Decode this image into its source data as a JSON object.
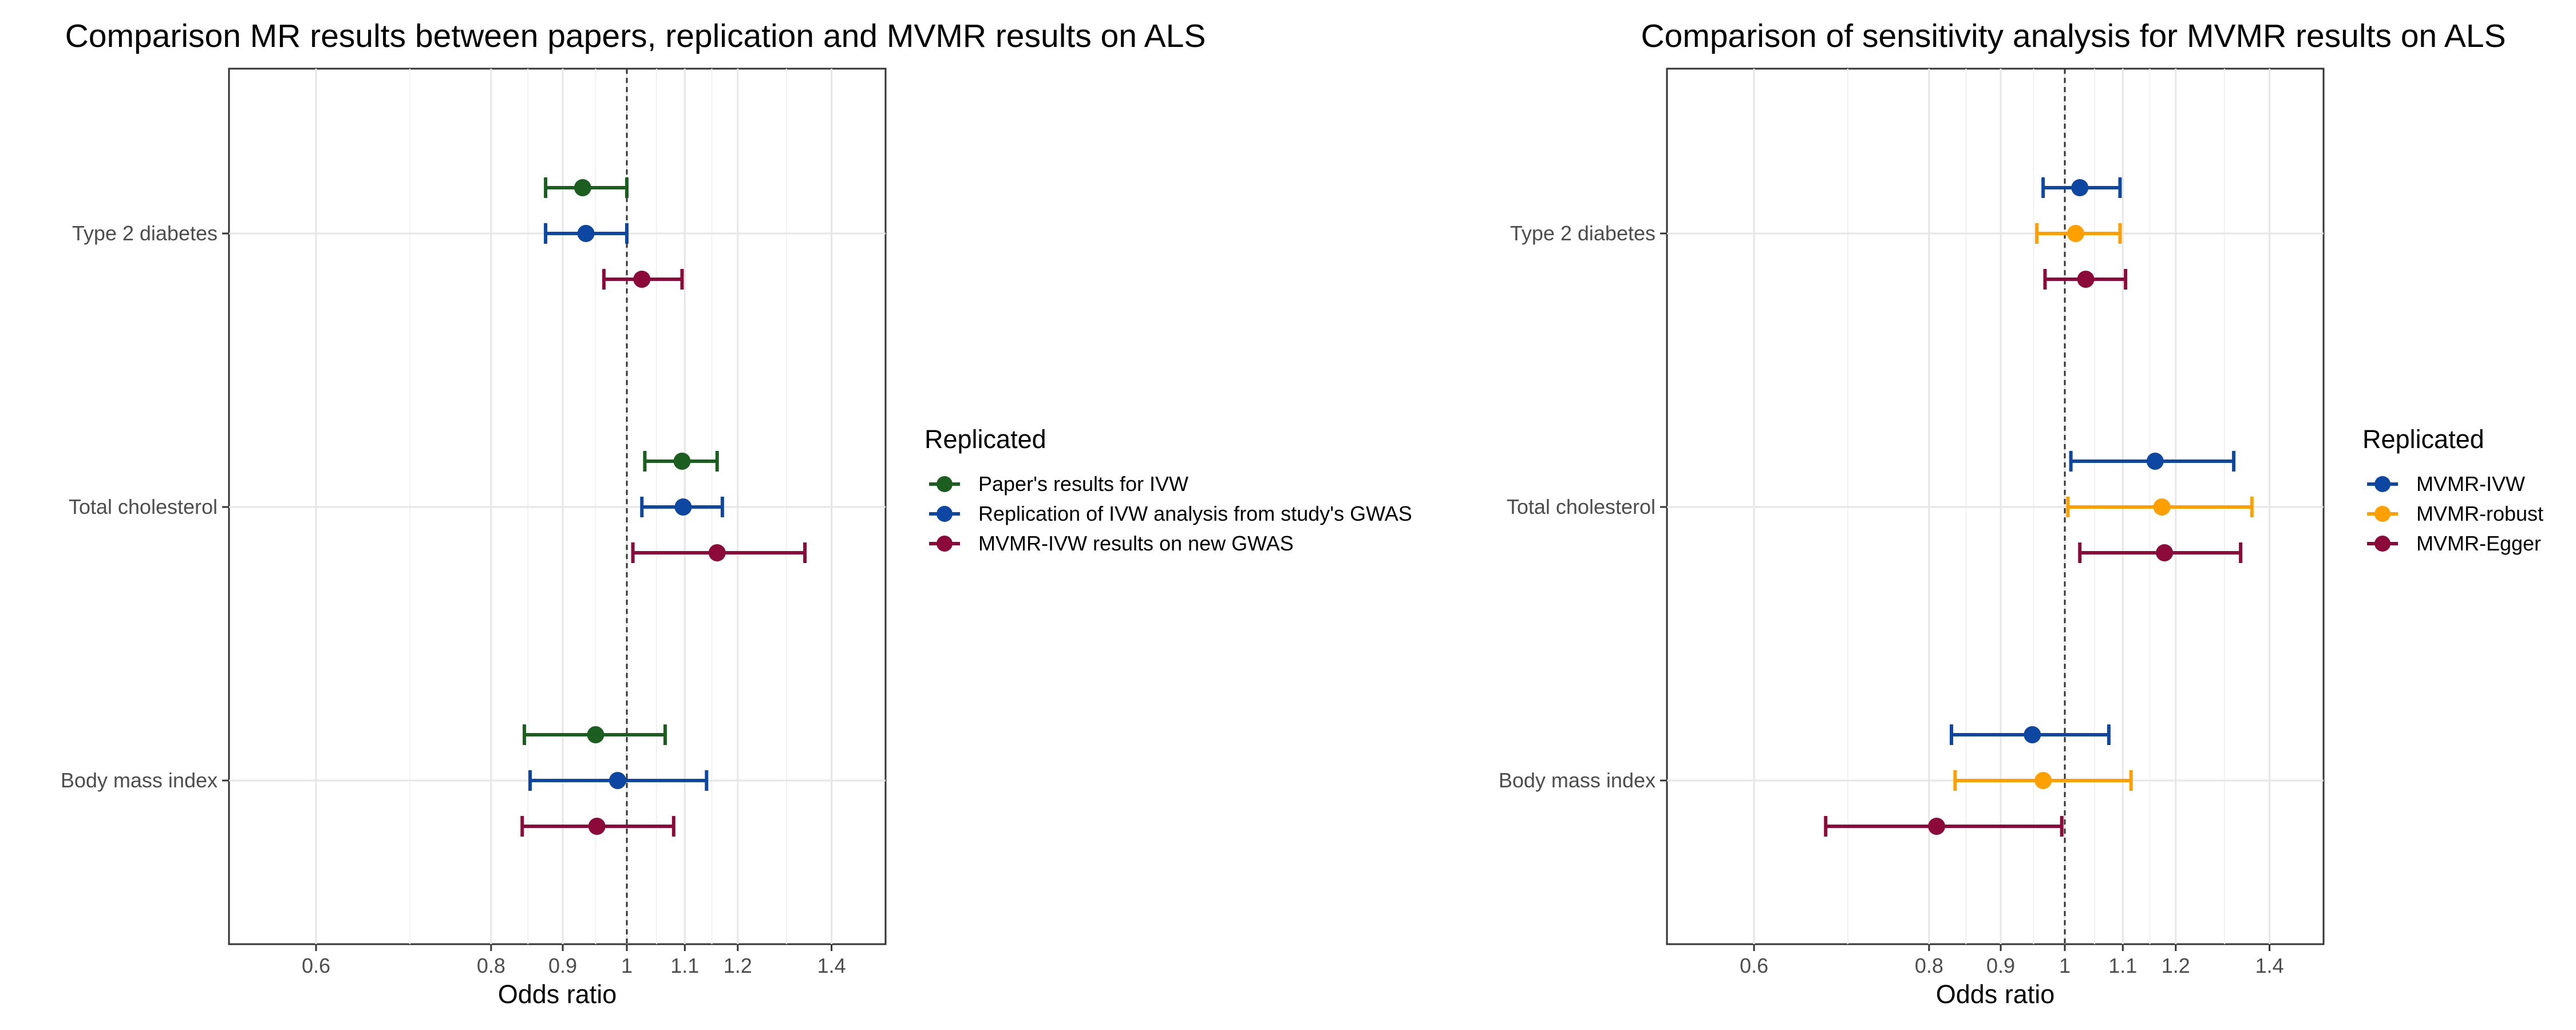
{
  "chart_data": [
    {
      "type": "scatter",
      "subtype": "forest-plot",
      "title": "Comparison MR results between papers, replication and MVMR results on ALS",
      "xlabel": "Odds ratio",
      "ylabel": "",
      "x_scale": "log",
      "xlim": [
        0.52,
        1.53
      ],
      "xticks": [
        0.6,
        0.8,
        0.9,
        1,
        1.1,
        1.2,
        1.4
      ],
      "xtick_labels": [
        "0.6",
        "0.8",
        "0.9",
        "1",
        "1.1",
        "1.2",
        "1.4"
      ],
      "reference_line": 1,
      "grid": true,
      "categories": [
        "Type 2 diabetes",
        "Total cholesterol",
        "Body mass index"
      ],
      "legend": {
        "title": "Replicated",
        "position": "right"
      },
      "series": [
        {
          "name": "Paper's results for IVW",
          "color": "#1b5e20",
          "points": [
            {
              "category": "Type 2 diabetes",
              "or": 0.93,
              "lower": 0.875,
              "upper": 1.0
            },
            {
              "category": "Total cholesterol",
              "or": 1.095,
              "lower": 1.03,
              "upper": 1.16
            },
            {
              "category": "Body mass index",
              "or": 0.95,
              "lower": 0.845,
              "upper": 1.065
            }
          ]
        },
        {
          "name": "Replication of IVW analysis from study's GWAS",
          "color": "#0d47a1",
          "points": [
            {
              "category": "Type 2 diabetes",
              "or": 0.935,
              "lower": 0.875,
              "upper": 1.0
            },
            {
              "category": "Total cholesterol",
              "or": 1.097,
              "lower": 1.025,
              "upper": 1.17
            },
            {
              "category": "Body mass index",
              "or": 0.985,
              "lower": 0.853,
              "upper": 1.14
            }
          ]
        },
        {
          "name": "MVMR-IVW results on new GWAS",
          "color": "#8b0a3a",
          "points": [
            {
              "category": "Type 2 diabetes",
              "or": 1.025,
              "lower": 0.963,
              "upper": 1.095
            },
            {
              "category": "Total cholesterol",
              "or": 1.16,
              "lower": 1.01,
              "upper": 1.34
            },
            {
              "category": "Body mass index",
              "or": 0.952,
              "lower": 0.842,
              "upper": 1.08
            }
          ]
        }
      ]
    },
    {
      "type": "scatter",
      "subtype": "forest-plot",
      "title": "Comparison of sensitivity analysis for MVMR results on ALS",
      "xlabel": "Odds ratio",
      "ylabel": "",
      "x_scale": "log",
      "xlim": [
        0.52,
        1.53
      ],
      "xticks": [
        0.6,
        0.8,
        0.9,
        1,
        1.1,
        1.2,
        1.4
      ],
      "xtick_labels": [
        "0.6",
        "0.8",
        "0.9",
        "1",
        "1.1",
        "1.2",
        "1.4"
      ],
      "reference_line": 1,
      "grid": true,
      "categories": [
        "Type 2 diabetes",
        "Total cholesterol",
        "Body mass index"
      ],
      "legend": {
        "title": "Replicated",
        "position": "right"
      },
      "series": [
        {
          "name": "MVMR-IVW",
          "color": "#0d47a1",
          "points": [
            {
              "category": "Type 2 diabetes",
              "or": 1.025,
              "lower": 0.965,
              "upper": 1.095
            },
            {
              "category": "Total cholesterol",
              "or": 1.16,
              "lower": 1.01,
              "upper": 1.32
            },
            {
              "category": "Body mass index",
              "or": 0.948,
              "lower": 0.83,
              "upper": 1.075
            }
          ]
        },
        {
          "name": "MVMR-robust",
          "color": "#ffa000",
          "points": [
            {
              "category": "Type 2 diabetes",
              "or": 1.018,
              "lower": 0.955,
              "upper": 1.095
            },
            {
              "category": "Total cholesterol",
              "or": 1.173,
              "lower": 1.005,
              "upper": 1.36
            },
            {
              "category": "Body mass index",
              "or": 0.965,
              "lower": 0.835,
              "upper": 1.115
            }
          ]
        },
        {
          "name": "MVMR-Egger",
          "color": "#8b0a3a",
          "points": [
            {
              "category": "Type 2 diabetes",
              "or": 1.035,
              "lower": 0.968,
              "upper": 1.105
            },
            {
              "category": "Total cholesterol",
              "or": 1.178,
              "lower": 1.025,
              "upper": 1.335
            },
            {
              "category": "Body mass index",
              "or": 0.81,
              "lower": 0.675,
              "upper": 0.995
            }
          ]
        }
      ]
    }
  ]
}
